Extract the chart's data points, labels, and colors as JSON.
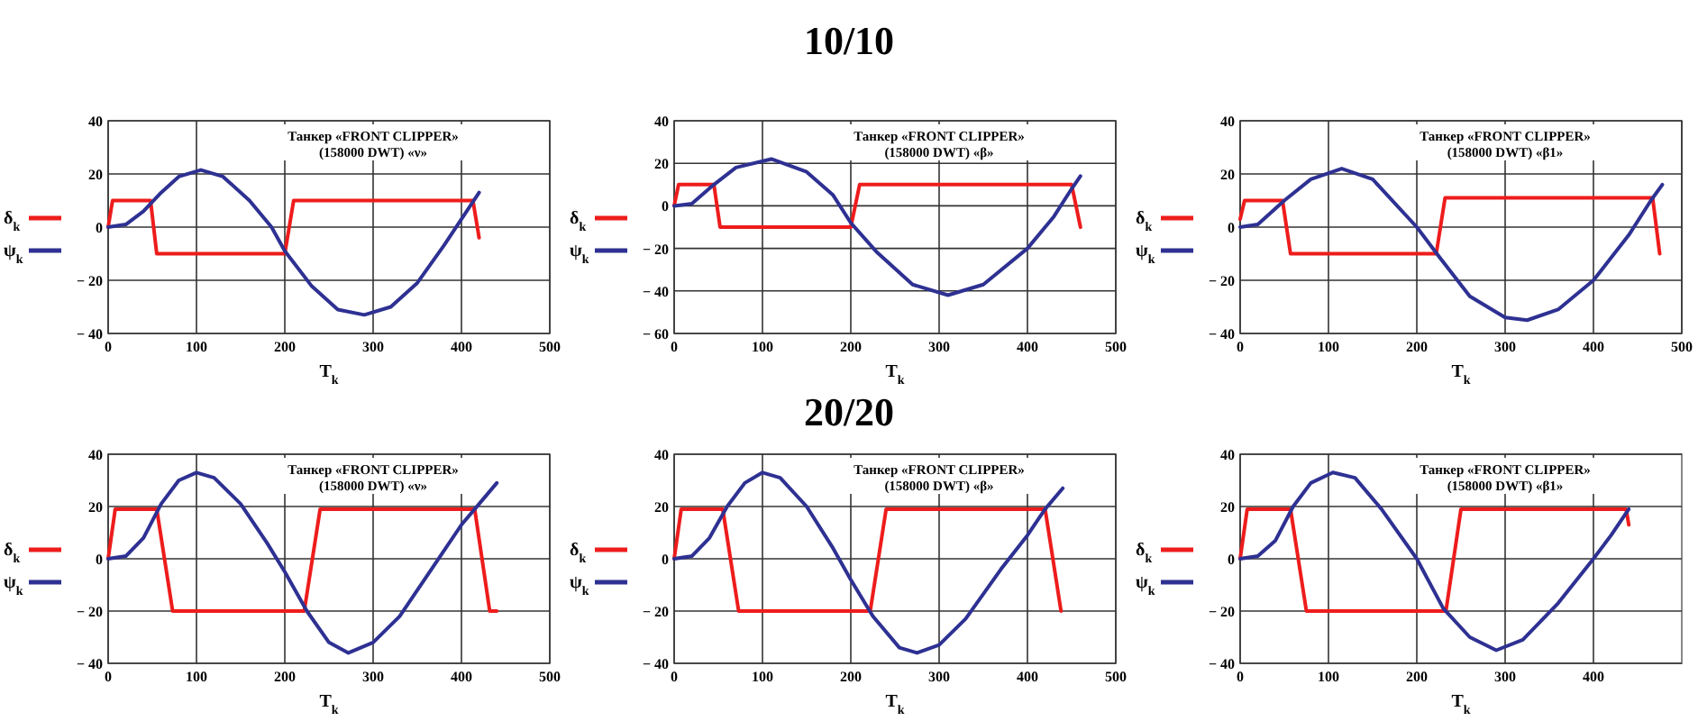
{
  "chart_data": [
    {
      "type": "line",
      "xlabel": "T$_{k}$",
      "annotations": [
        "Танкер «FRONT CLIPPER» (158000 DWT) «ν»"
      ],
      "xlim": [
        0,
        500
      ],
      "ylim": [
        -40,
        40
      ],
      "xticks": [
        0,
        100,
        200,
        300,
        400,
        500
      ],
      "yticks": [
        -40,
        -20,
        0,
        20,
        40
      ],
      "grid": true,
      "legend": "left",
      "series": [
        {
          "name": "δ$_{k}$",
          "color": "#ee1c1c",
          "x": [
            0,
            5,
            48,
            55,
            200,
            210,
            413,
            420
          ],
          "values": [
            0,
            10,
            10,
            -10,
            -10,
            10,
            10,
            -4
          ]
        },
        {
          "name": "ψ$_{k}$",
          "color": "#2e3192",
          "x": [
            0,
            20,
            40,
            60,
            80,
            105,
            130,
            160,
            185,
            200,
            230,
            260,
            290,
            320,
            350,
            380,
            400,
            420
          ],
          "values": [
            0,
            1,
            6,
            13,
            19,
            21.5,
            19,
            10,
            0,
            -9,
            -22,
            -31,
            -33,
            -30,
            -21,
            -7,
            3,
            13
          ]
        }
      ]
    },
    {
      "type": "line",
      "title": "10/10",
      "xlabel": "T$_{k}$",
      "annotations": [
        "Танкер «FRONT CLIPPER» (158000 DWT) «β»"
      ],
      "xlim": [
        0,
        500
      ],
      "ylim": [
        -60,
        40
      ],
      "xticks": [
        0,
        100,
        200,
        300,
        400,
        500
      ],
      "yticks": [
        -60,
        -40,
        -20,
        0,
        20,
        40
      ],
      "grid": true,
      "legend": "left",
      "series": [
        {
          "name": "δ$_{k}$",
          "color": "#ee1c1c",
          "x": [
            0,
            5,
            45,
            52,
            200,
            210,
            450,
            460
          ],
          "values": [
            0,
            10,
            10,
            -10,
            -10,
            10,
            10,
            -10
          ]
        },
        {
          "name": "ψ$_{k}$",
          "color": "#2e3192",
          "x": [
            0,
            20,
            45,
            70,
            110,
            150,
            180,
            200,
            230,
            270,
            310,
            350,
            400,
            430,
            450,
            460
          ],
          "values": [
            0,
            1,
            10,
            18,
            22,
            16,
            5,
            -8,
            -22,
            -37,
            -42,
            -37,
            -20,
            -5,
            8,
            14
          ]
        }
      ]
    },
    {
      "type": "line",
      "xlabel": "T$_{k}$",
      "annotations": [
        "Танкер «FRONT CLIPPER» (158000 DWT) «β1»"
      ],
      "xlim": [
        0,
        500
      ],
      "ylim": [
        -40,
        40
      ],
      "xticks": [
        0,
        100,
        200,
        300,
        400,
        500
      ],
      "yticks": [
        -40,
        -20,
        0,
        20,
        40
      ],
      "grid": true,
      "legend": "left",
      "series": [
        {
          "name": "δ$_{k}$",
          "color": "#ee1c1c",
          "x": [
            0,
            5,
            48,
            57,
            222,
            232,
            467,
            475
          ],
          "values": [
            3,
            10,
            10,
            -10,
            -10,
            11,
            11,
            -10
          ]
        },
        {
          "name": "ψ$_{k}$",
          "color": "#2e3192",
          "x": [
            0,
            20,
            50,
            80,
            115,
            150,
            200,
            225,
            260,
            300,
            325,
            360,
            400,
            440,
            465,
            478
          ],
          "values": [
            0,
            1,
            10,
            18,
            22,
            18,
            0,
            -11,
            -26,
            -34,
            -35,
            -31,
            -20,
            -3,
            10,
            16
          ]
        }
      ]
    },
    {
      "type": "line",
      "xlabel": "T$_{k}$",
      "annotations": [
        "Танкер «FRONT CLIPPER» (158000 DWT) «ν»"
      ],
      "xlim": [
        0,
        500
      ],
      "ylim": [
        -40,
        40
      ],
      "xticks": [
        0,
        100,
        200,
        300,
        400,
        500
      ],
      "yticks": [
        -40,
        -20,
        0,
        20,
        40
      ],
      "grid": true,
      "legend": "left",
      "series": [
        {
          "name": "δ$_{k}$",
          "color": "#ee1c1c",
          "x": [
            0,
            8,
            55,
            73,
            222,
            240,
            415,
            432,
            440
          ],
          "values": [
            0,
            19,
            19,
            -20,
            -20,
            19,
            19,
            -20,
            -20
          ]
        },
        {
          "name": "ψ$_{k}$",
          "color": "#2e3192",
          "x": [
            0,
            20,
            40,
            60,
            80,
            100,
            120,
            150,
            180,
            200,
            225,
            250,
            272,
            300,
            330,
            370,
            400,
            420,
            440
          ],
          "values": [
            0,
            1,
            8,
            21,
            30,
            33,
            31,
            21,
            6,
            -5,
            -20,
            -32,
            -36,
            -32,
            -22,
            -2,
            13,
            21,
            29
          ]
        }
      ]
    },
    {
      "type": "line",
      "title": "20/20",
      "xlabel": "T$_{k}$",
      "annotations": [
        "Танкер «FRONT CLIPPER» (158000 DWT) «β»"
      ],
      "xlim": [
        0,
        500
      ],
      "ylim": [
        -40,
        40
      ],
      "xticks": [
        0,
        100,
        200,
        300,
        400,
        500
      ],
      "yticks": [
        -40,
        -20,
        0,
        20,
        40
      ],
      "grid": true,
      "legend": "left",
      "series": [
        {
          "name": "δ$_{k}$",
          "color": "#ee1c1c",
          "x": [
            0,
            8,
            55,
            73,
            222,
            240,
            420,
            438
          ],
          "values": [
            0,
            19,
            19,
            -20,
            -20,
            19,
            19,
            -20
          ]
        },
        {
          "name": "ψ$_{k}$",
          "color": "#2e3192",
          "x": [
            0,
            20,
            40,
            60,
            80,
            100,
            120,
            150,
            180,
            200,
            225,
            255,
            275,
            300,
            330,
            370,
            400,
            420,
            440
          ],
          "values": [
            0,
            1,
            8,
            20,
            29,
            33,
            31,
            20,
            4,
            -8,
            -22,
            -34,
            -36,
            -33,
            -23,
            -4,
            9,
            19,
            27
          ]
        }
      ]
    },
    {
      "type": "line",
      "xlabel": "T$_{k}$",
      "annotations": [
        "Танкер «FRONT CLIPPER» (158000 DWT) «β1»"
      ],
      "xlim": [
        0,
        500
      ],
      "ylim": [
        -40,
        40
      ],
      "xticks": [
        0,
        100,
        200,
        300,
        400
      ],
      "yticks": [
        -40,
        -20,
        0,
        20,
        40
      ],
      "grid": true,
      "legend": "left",
      "series": [
        {
          "name": "δ$_{k}$",
          "color": "#ee1c1c",
          "x": [
            0,
            8,
            57,
            75,
            233,
            250,
            437,
            440
          ],
          "values": [
            0,
            19,
            19,
            -20,
            -20,
            19,
            19,
            13
          ]
        },
        {
          "name": "ψ$_{k}$",
          "color": "#2e3192",
          "x": [
            0,
            20,
            40,
            60,
            80,
            105,
            130,
            160,
            200,
            230,
            260,
            290,
            320,
            360,
            400,
            420,
            440
          ],
          "values": [
            0,
            1,
            7,
            20,
            29,
            33,
            31,
            19,
            0,
            -19,
            -30,
            -35,
            -31,
            -17,
            0,
            9,
            19
          ]
        }
      ]
    }
  ]
}
